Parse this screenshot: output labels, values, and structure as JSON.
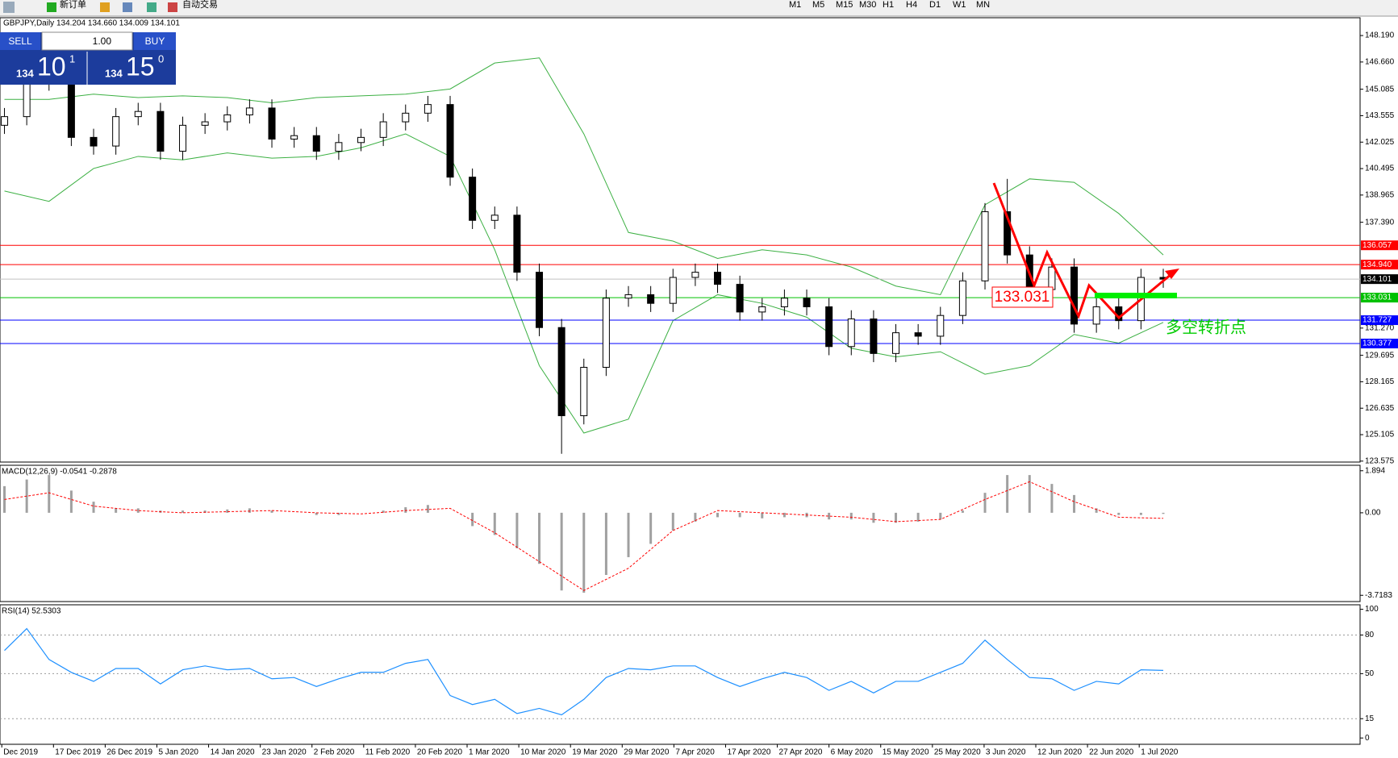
{
  "toolbar": {
    "buttons": [
      "新订单",
      "自动交易"
    ],
    "timeframes": [
      "M1",
      "M5",
      "M15",
      "M30",
      "H1",
      "H4",
      "D1",
      "W1",
      "MN"
    ]
  },
  "one_click": {
    "sell": "SELL",
    "lot": "1.00",
    "buy": "BUY",
    "sell_price": [
      "134",
      "10",
      "1"
    ],
    "buy_price": [
      "134",
      "15",
      "0"
    ]
  },
  "chart_data": [
    {
      "type": "candlestick",
      "title": "GBPJPY,Daily  134.204 134.660 134.009 134.101",
      "open": [
        143.0,
        143.5,
        145.5,
        146.5,
        142.3,
        141.8,
        143.5,
        143.8,
        141.5,
        143.0,
        143.2,
        143.6,
        144.0,
        142.2,
        142.4,
        141.5,
        142.0,
        142.3,
        143.2,
        143.7,
        144.2,
        140.0,
        137.5,
        137.8,
        134.5,
        131.3,
        126.2,
        129.0,
        133.0,
        133.2,
        132.7,
        134.2,
        134.5,
        133.8,
        132.2,
        132.5,
        133.0,
        132.5,
        130.2,
        131.8,
        129.8,
        131.0,
        130.8,
        132.0,
        134.0,
        138.0,
        135.5,
        133.5,
        134.8,
        131.5,
        132.5,
        131.7,
        134.2
      ],
      "high": [
        144.0,
        146.0,
        148.0,
        147.0,
        142.8,
        144.0,
        144.3,
        144.3,
        143.5,
        143.7,
        144.1,
        144.5,
        144.5,
        142.9,
        142.9,
        142.5,
        142.8,
        143.7,
        144.2,
        144.7,
        144.7,
        140.5,
        138.3,
        138.3,
        135.0,
        131.8,
        129.5,
        133.5,
        133.7,
        133.7,
        134.7,
        135.0,
        135.0,
        134.3,
        133.0,
        133.5,
        133.5,
        133.0,
        132.3,
        132.3,
        131.5,
        131.5,
        132.5,
        134.5,
        138.5,
        139.9,
        136.0,
        135.3,
        135.3,
        133.0,
        133.0,
        134.7,
        134.7
      ],
      "low": [
        142.5,
        143.0,
        145.0,
        141.8,
        141.3,
        141.3,
        143.0,
        141.0,
        141.0,
        142.5,
        142.7,
        143.1,
        141.7,
        141.7,
        141.0,
        141.0,
        141.5,
        141.8,
        142.7,
        143.2,
        139.5,
        137.0,
        137.0,
        134.0,
        130.8,
        124.0,
        125.7,
        128.5,
        132.5,
        132.2,
        132.2,
        133.7,
        133.3,
        131.7,
        131.7,
        132.0,
        132.0,
        129.7,
        129.7,
        129.3,
        129.3,
        130.3,
        130.3,
        131.5,
        133.5,
        135.0,
        133.0,
        133.0,
        131.0,
        131.0,
        131.2,
        131.2,
        133.6
      ],
      "close": [
        143.5,
        145.5,
        146.5,
        142.3,
        141.8,
        143.5,
        143.8,
        141.5,
        143.0,
        143.2,
        143.6,
        144.0,
        142.2,
        142.4,
        141.5,
        142.0,
        142.3,
        143.2,
        143.7,
        144.2,
        140.0,
        137.5,
        137.8,
        134.5,
        131.3,
        126.2,
        129.0,
        133.0,
        133.2,
        132.7,
        134.2,
        134.5,
        133.8,
        132.2,
        132.5,
        133.0,
        132.5,
        130.2,
        131.8,
        129.8,
        131.0,
        130.8,
        132.0,
        134.0,
        138.0,
        135.5,
        133.5,
        134.8,
        131.5,
        132.5,
        131.7,
        134.2,
        134.1
      ],
      "upper_band": [
        144.5,
        144.5,
        144.8,
        144.6,
        144.7,
        144.6,
        144.3,
        144.6,
        144.7,
        144.8,
        145.1,
        146.6,
        146.9,
        142.5,
        136.8,
        136.3,
        135.3,
        135.8,
        135.5,
        134.8,
        133.7,
        133.2,
        138.4,
        139.9,
        139.7,
        137.9,
        135.5
      ],
      "lower_band": [
        139.2,
        138.6,
        140.5,
        141.2,
        141.0,
        141.4,
        141.1,
        141.2,
        141.7,
        142.5,
        141.2,
        135.8,
        129.1,
        125.2,
        126.0,
        131.7,
        133.2,
        132.7,
        131.9,
        130.1,
        129.6,
        129.9,
        128.6,
        129.1,
        130.9,
        130.4,
        131.6
      ],
      "band_color": "#3cb043",
      "hlines": [
        {
          "value": 136.057,
          "label": "136.057",
          "color": "#ff0000"
        },
        {
          "value": 134.94,
          "label": "134.940",
          "color": "#ff0000"
        },
        {
          "value": 134.101,
          "label": "134.101",
          "color": "#c0c0c0"
        },
        {
          "value": 133.031,
          "label": "133.031",
          "color": "#00c000"
        },
        {
          "value": 131.727,
          "label": "131.727",
          "color": "#0000ff"
        },
        {
          "value": 130.377,
          "label": "130.377",
          "color": "#0000ff"
        }
      ],
      "annotations": [
        "133.031",
        "多空转折点"
      ],
      "ylim": [
        123.52,
        149.22
      ],
      "yticks": [
        {
          "value": 148.19,
          "label": "148.190"
        },
        {
          "value": 146.66,
          "label": "146.660"
        },
        {
          "value": 145.085,
          "label": "145.085"
        },
        {
          "value": 143.555,
          "label": "143.555"
        },
        {
          "value": 142.025,
          "label": "142.025"
        },
        {
          "value": 140.495,
          "label": "140.495"
        },
        {
          "value": 138.965,
          "label": "138.965"
        },
        {
          "value": 137.39,
          "label": "137.390"
        },
        {
          "value": 131.27,
          "label": "131.270"
        },
        {
          "value": 129.695,
          "label": "129.695"
        },
        {
          "value": 128.165,
          "label": "128.165"
        },
        {
          "value": 126.635,
          "label": "126.635"
        },
        {
          "value": 125.105,
          "label": "125.105"
        },
        {
          "value": 123.575,
          "label": "123.575"
        }
      ],
      "xtick_labels": [
        "Dec 2019",
        "17 Dec 2019",
        "26 Dec 2019",
        "5 Jan 2020",
        "14 Jan 2020",
        "23 Jan 2020",
        "2 Feb 2020",
        "11 Feb 2020",
        "20 Feb 2020",
        "1 Mar 2020",
        "10 Mar 2020",
        "19 Mar 2020",
        "29 Mar 2020",
        "7 Apr 2020",
        "17 Apr 2020",
        "27 Apr 2020",
        "6 May 2020",
        "15 May 2020",
        "25 May 2020",
        "3 Jun 2020",
        "12 Jun 2020",
        "22 Jun 2020",
        "1 Jul 2020"
      ]
    },
    {
      "type": "macd",
      "title": "MACD(12,26,9) -0.0541 -0.2878",
      "values": [
        1.2,
        1.5,
        1.7,
        1.0,
        0.5,
        0.2,
        0.2,
        0.1,
        0.1,
        0.1,
        0.15,
        0.2,
        0.1,
        0.0,
        -0.1,
        -0.1,
        0.0,
        0.1,
        0.25,
        0.35,
        0.0,
        -0.6,
        -1.0,
        -1.6,
        -2.3,
        -3.5,
        -3.6,
        -2.8,
        -2.0,
        -1.4,
        -0.8,
        -0.4,
        -0.2,
        -0.2,
        -0.25,
        -0.2,
        -0.2,
        -0.3,
        -0.3,
        -0.45,
        -0.45,
        -0.4,
        -0.3,
        0.1,
        0.9,
        1.7,
        1.7,
        1.3,
        0.8,
        0.2,
        -0.1,
        -0.1,
        -0.05
      ],
      "signal": [
        0.6,
        0.9,
        0.3,
        0.1,
        0.0,
        0.05,
        0.1,
        0.0,
        -0.05,
        0.1,
        0.2,
        -0.9,
        -2.2,
        -3.5,
        -2.5,
        -0.8,
        0.1,
        0.0,
        -0.1,
        -0.2,
        -0.4,
        -0.3,
        0.6,
        1.4,
        0.5,
        -0.2,
        -0.25
      ],
      "color": "#a0a0a0",
      "signal_color": "#ff0000",
      "ylim": [
        -4.0,
        2.14
      ],
      "yticks": [
        1.894,
        {
          "value": 0,
          "label": "0.00"
        },
        -3.7183
      ]
    },
    {
      "type": "line",
      "title": "RSI(14) 52.5303",
      "values": [
        68,
        85,
        61,
        51,
        44,
        54,
        54,
        42,
        53,
        56,
        53,
        54,
        46,
        47,
        40,
        46,
        51,
        51,
        58,
        61,
        33,
        26,
        30,
        19,
        23,
        18,
        30,
        47,
        54,
        53,
        56,
        56,
        47,
        40,
        46,
        51,
        47,
        37,
        44,
        35,
        44,
        44,
        51,
        58,
        76,
        61,
        47,
        46,
        37,
        44,
        42,
        53,
        52.5
      ],
      "color": "#1e90ff",
      "ylim": [
        -4.9,
        103.5
      ],
      "yticks": [
        100,
        80,
        50,
        15,
        0
      ]
    }
  ]
}
